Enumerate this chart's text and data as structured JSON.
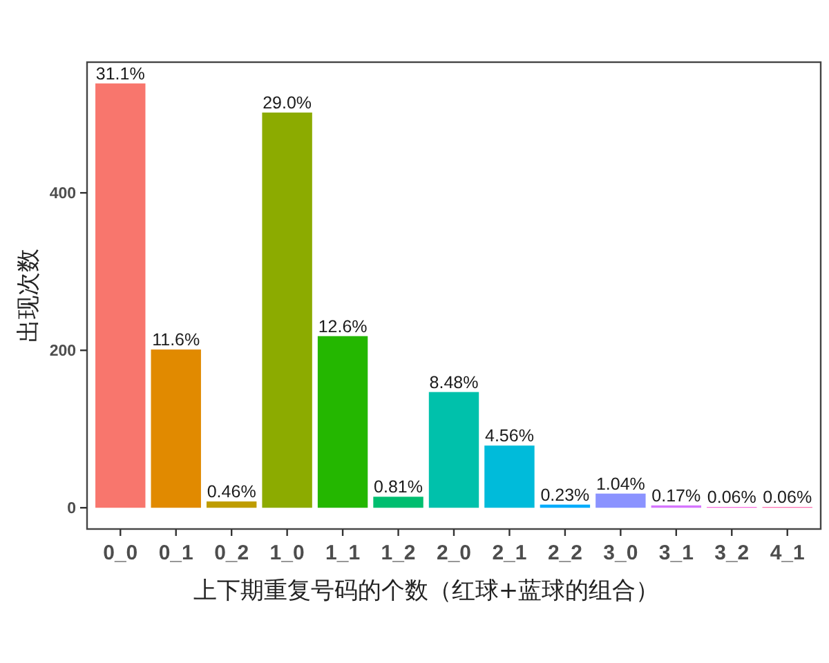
{
  "chart_data": {
    "type": "bar",
    "xlabel": "上下期重复号码的个数（红球+蓝球的组合）",
    "ylabel": "出现次数",
    "categories": [
      "0_0",
      "0_1",
      "0_2",
      "1_0",
      "1_1",
      "1_2",
      "2_0",
      "2_1",
      "2_2",
      "3_0",
      "3_1",
      "3_2",
      "4_1"
    ],
    "values": [
      539,
      201,
      8,
      502,
      218,
      14,
      147,
      79,
      4,
      18,
      3,
      1,
      1
    ],
    "colors": [
      "#f8766d",
      "#e18a00",
      "#be9c00",
      "#8cab00",
      "#24b700",
      "#00be70",
      "#00c1ab",
      "#00bbda",
      "#00acfc",
      "#8b93ff",
      "#d575fe",
      "#f962dd",
      "#ff65ac"
    ],
    "annotations": [
      {
        "text": "31.1%",
        "x": "0_0",
        "y": 539
      },
      {
        "text": "11.6%",
        "x": "0_1",
        "y": 201
      },
      {
        "text": "0.46%",
        "x": "0_2",
        "y": 8
      },
      {
        "text": "29.0%",
        "x": "1_0",
        "y": 502
      },
      {
        "text": "12.6%",
        "x": "1_1",
        "y": 218
      },
      {
        "text": "0.81%",
        "x": "1_2",
        "y": 14
      },
      {
        "text": "8.48%",
        "x": "2_0",
        "y": 147
      },
      {
        "text": "4.56%",
        "x": "2_1",
        "y": 79
      },
      {
        "text": "0.23%",
        "x": "2_2",
        "y": 4
      },
      {
        "text": "1.04%",
        "x": "3_0",
        "y": 18
      },
      {
        "text": "0.17%",
        "x": "3_1",
        "y": 3
      },
      {
        "text": "0.06%",
        "x": "3_2",
        "y": 1
      },
      {
        "text": "0.06%",
        "x": "4_1",
        "y": 1
      }
    ],
    "ylim": [
      -27,
      566
    ],
    "yticks": [
      0,
      200,
      400
    ]
  }
}
